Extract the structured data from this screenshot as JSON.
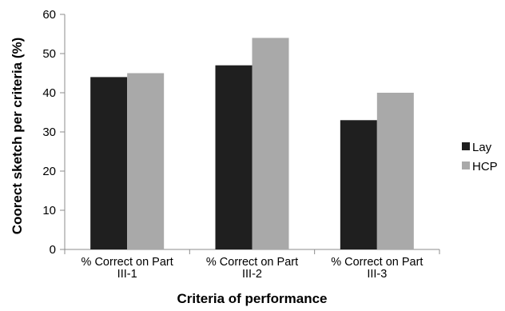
{
  "chart_data": {
    "type": "bar",
    "title": "",
    "xlabel": "Criteria of performance",
    "ylabel": "Coorect sketch per criteria (%)",
    "ylim": [
      0,
      60
    ],
    "yticks": [
      0,
      10,
      20,
      30,
      40,
      50,
      60
    ],
    "categories": [
      [
        "% Correct on Part",
        "III-1"
      ],
      [
        "% Correct on Part",
        "III-2"
      ],
      [
        "% Correct on Part",
        "III-3"
      ]
    ],
    "series": [
      {
        "name": "Lay",
        "values": [
          44,
          47,
          33
        ],
        "color": "#1f1f1f"
      },
      {
        "name": "HCP",
        "values": [
          45,
          54,
          40
        ],
        "color": "#a9a9a9"
      }
    ],
    "grid": false,
    "legend_position": "right"
  }
}
